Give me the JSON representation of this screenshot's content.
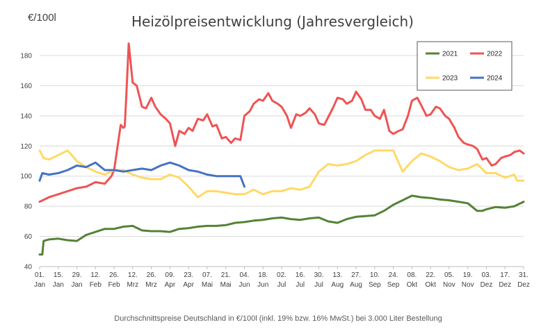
{
  "chart_data": {
    "type": "line",
    "title": "Heizölpreisentwicklung (Jahresvergleich)",
    "unit_label": "€/100l",
    "caption": "Durchschnittspreise Deutschland in €/100l (inkl. 19% bzw. 16%  MwSt.) bei 3.000 Liter Bestellung",
    "ylim": [
      40,
      180
    ],
    "y_ticks": [
      40,
      60,
      80,
      100,
      120,
      140,
      160,
      180
    ],
    "x_range": [
      1,
      365
    ],
    "x_ticks": [
      {
        "day": 1,
        "day_label": "01.",
        "month_label": "Jan"
      },
      {
        "day": 15,
        "day_label": "15.",
        "month_label": "Jan"
      },
      {
        "day": 29,
        "day_label": "29.",
        "month_label": "Jan"
      },
      {
        "day": 43,
        "day_label": "12.",
        "month_label": "Feb"
      },
      {
        "day": 57,
        "day_label": "26.",
        "month_label": "Feb"
      },
      {
        "day": 71,
        "day_label": "12.",
        "month_label": "Mrz"
      },
      {
        "day": 85,
        "day_label": "26.",
        "month_label": "Mrz"
      },
      {
        "day": 99,
        "day_label": "09.",
        "month_label": "Apr"
      },
      {
        "day": 113,
        "day_label": "23.",
        "month_label": "Apr"
      },
      {
        "day": 127,
        "day_label": "07.",
        "month_label": "Mai"
      },
      {
        "day": 141,
        "day_label": "21.",
        "month_label": "Mai"
      },
      {
        "day": 155,
        "day_label": "04.",
        "month_label": "Jun"
      },
      {
        "day": 169,
        "day_label": "18.",
        "month_label": "Jun"
      },
      {
        "day": 183,
        "day_label": "02.",
        "month_label": "Jul"
      },
      {
        "day": 197,
        "day_label": "16.",
        "month_label": "Jul"
      },
      {
        "day": 211,
        "day_label": "30.",
        "month_label": "Jul"
      },
      {
        "day": 225,
        "day_label": "13.",
        "month_label": "Aug"
      },
      {
        "day": 239,
        "day_label": "27.",
        "month_label": "Aug"
      },
      {
        "day": 253,
        "day_label": "10.",
        "month_label": "Sep"
      },
      {
        "day": 267,
        "day_label": "24.",
        "month_label": "Sep"
      },
      {
        "day": 281,
        "day_label": "08.",
        "month_label": "Okt"
      },
      {
        "day": 295,
        "day_label": "22.",
        "month_label": "Okt"
      },
      {
        "day": 309,
        "day_label": "05.",
        "month_label": "Nov"
      },
      {
        "day": 323,
        "day_label": "19.",
        "month_label": "Nov"
      },
      {
        "day": 337,
        "day_label": "03.",
        "month_label": "Dez"
      },
      {
        "day": 351,
        "day_label": "17.",
        "month_label": "Dez"
      },
      {
        "day": 365,
        "day_label": "31.",
        "month_label": "Dez"
      }
    ],
    "grid": "horizontal",
    "legend_position": "top-right",
    "series": [
      {
        "name": "2021",
        "color": "#548235",
        "x": [
          1,
          3,
          4,
          8,
          15,
          22,
          29,
          36,
          43,
          50,
          57,
          64,
          71,
          78,
          85,
          92,
          99,
          106,
          113,
          120,
          127,
          134,
          141,
          148,
          155,
          162,
          169,
          176,
          183,
          190,
          197,
          204,
          211,
          218,
          225,
          232,
          239,
          246,
          253,
          260,
          267,
          274,
          281,
          288,
          295,
          302,
          309,
          316,
          323,
          330,
          334,
          337,
          344,
          351,
          358,
          365
        ],
        "y": [
          48,
          48,
          57,
          58,
          58.5,
          57.5,
          57,
          61,
          63,
          65,
          65,
          66.5,
          67,
          64,
          63.5,
          63.5,
          63,
          65,
          65.5,
          66.5,
          67,
          67,
          67.5,
          69,
          69.5,
          70.5,
          71,
          72,
          72.5,
          71.5,
          71,
          72,
          72.5,
          70,
          69,
          71.5,
          73,
          73.5,
          74,
          77,
          81,
          84,
          87,
          86,
          85.5,
          84.5,
          84,
          83,
          82,
          77,
          77,
          78,
          79.5,
          79,
          80,
          83
        ]
      },
      {
        "name": "2022",
        "color": "#ef5353",
        "x": [
          1,
          8,
          15,
          22,
          29,
          36,
          43,
          50,
          55,
          57,
          60,
          62,
          64,
          65,
          66,
          68,
          71,
          74,
          78,
          81,
          85,
          88,
          92,
          96,
          99,
          103,
          106,
          110,
          113,
          116,
          120,
          124,
          127,
          131,
          134,
          138,
          141,
          145,
          148,
          152,
          155,
          159,
          162,
          166,
          169,
          173,
          176,
          180,
          183,
          187,
          190,
          194,
          197,
          201,
          204,
          208,
          211,
          215,
          218,
          222,
          225,
          229,
          232,
          236,
          239,
          243,
          246,
          250,
          253,
          257,
          260,
          264,
          267,
          271,
          274,
          278,
          281,
          285,
          288,
          292,
          295,
          299,
          302,
          306,
          309,
          313,
          316,
          320,
          323,
          327,
          330,
          334,
          337,
          341,
          344,
          348,
          351,
          355,
          358,
          362,
          365
        ],
        "y": [
          83,
          86,
          88,
          90,
          92,
          93,
          96,
          95,
          100,
          104,
          122,
          134,
          132,
          133,
          150,
          188,
          162,
          160,
          146,
          145,
          152,
          146,
          141,
          138,
          135,
          120,
          130,
          128,
          132,
          130,
          138,
          137,
          141,
          133,
          134,
          125,
          126,
          122,
          125,
          124,
          140,
          143,
          148,
          151,
          150,
          155,
          150,
          148,
          146,
          140,
          132,
          141,
          140,
          142,
          145,
          141,
          135,
          134,
          139,
          146,
          152,
          151,
          148,
          150,
          156,
          151,
          144,
          144,
          140,
          138,
          144,
          130,
          128,
          130,
          131,
          140,
          150,
          152,
          147,
          140,
          141,
          146,
          145,
          140,
          138,
          132,
          126,
          122,
          121,
          120,
          118,
          111,
          112,
          107,
          108,
          112,
          113,
          114,
          116,
          117,
          115
        ]
      },
      {
        "name": "2023",
        "color": "#ffd966",
        "x": [
          1,
          4,
          8,
          15,
          22,
          29,
          36,
          43,
          50,
          57,
          64,
          71,
          78,
          85,
          92,
          99,
          106,
          113,
          120,
          127,
          134,
          141,
          148,
          155,
          162,
          169,
          176,
          183,
          190,
          197,
          204,
          211,
          218,
          225,
          232,
          239,
          246,
          253,
          260,
          267,
          274,
          281,
          288,
          295,
          302,
          309,
          316,
          323,
          330,
          337,
          344,
          351,
          358,
          360,
          365
        ],
        "y": [
          117,
          112,
          111,
          114,
          117,
          110,
          106,
          103,
          101,
          104,
          104,
          101,
          99,
          98,
          98,
          101,
          99,
          93,
          86,
          90,
          90,
          89,
          88,
          88,
          91,
          88,
          90,
          90,
          92,
          91,
          93,
          103,
          108,
          107,
          108,
          110,
          114,
          117,
          117,
          117,
          103,
          110,
          115,
          113,
          110,
          106,
          104,
          105,
          108,
          102,
          102,
          99,
          101,
          97,
          97
        ]
      },
      {
        "name": "2024",
        "color": "#4472c4",
        "x": [
          1,
          3,
          8,
          15,
          22,
          29,
          36,
          43,
          50,
          57,
          64,
          71,
          78,
          85,
          92,
          99,
          106,
          113,
          120,
          127,
          134,
          141,
          148,
          152,
          155
        ],
        "y": [
          97,
          102,
          101,
          102,
          104,
          107,
          106,
          109,
          104,
          104,
          103,
          104,
          105,
          104,
          107,
          109,
          107,
          104,
          103,
          101,
          100,
          100,
          100,
          100,
          93
        ]
      }
    ]
  }
}
